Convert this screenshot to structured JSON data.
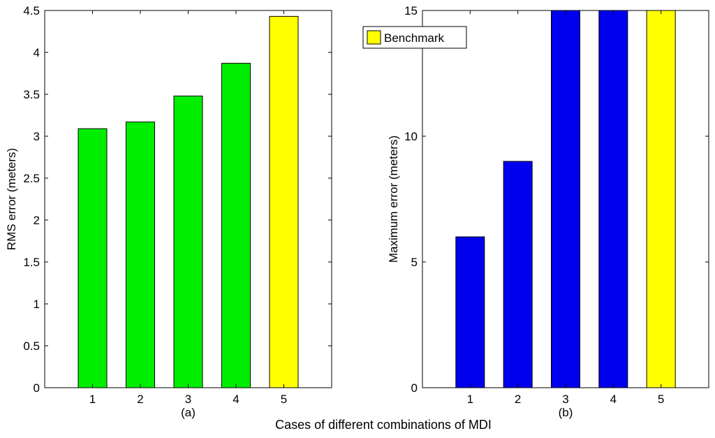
{
  "figure": {
    "xlabel": "Cases of different combinations of MDI"
  },
  "chart_data": [
    {
      "type": "bar",
      "subcaption": "(a)",
      "categories": [
        "1",
        "2",
        "3",
        "4",
        "5"
      ],
      "values": [
        3.09,
        3.17,
        3.48,
        3.87,
        4.43
      ],
      "bar_colors": [
        "#00ee00",
        "#00ee00",
        "#00ee00",
        "#00ee00",
        "#ffff00"
      ],
      "ylabel": "RMS error (meters)",
      "ylim": [
        0,
        4.5
      ],
      "yticks": [
        0,
        0.5,
        1,
        1.5,
        2,
        2.5,
        3,
        3.5,
        4,
        4.5
      ],
      "ytick_labels": [
        "0",
        "0.5",
        "1",
        "1.5",
        "2",
        "2.5",
        "3",
        "3.5",
        "4",
        "4.5"
      ],
      "grid": false
    },
    {
      "type": "bar",
      "subcaption": "(b)",
      "categories": [
        "1",
        "2",
        "3",
        "4",
        "5"
      ],
      "values": [
        6,
        9,
        15,
        15,
        15
      ],
      "bar_colors": [
        "#0000ee",
        "#0000ee",
        "#0000ee",
        "#0000ee",
        "#ffff00"
      ],
      "ylabel": "Maximum error (meters)",
      "ylim": [
        0,
        15
      ],
      "yticks": [
        0,
        5,
        10,
        15
      ],
      "ytick_labels": [
        "0",
        "5",
        "10",
        "15"
      ],
      "legend": {
        "label": "Benchmark",
        "color": "#ffff00",
        "placement": "top-left"
      },
      "grid": false
    }
  ]
}
